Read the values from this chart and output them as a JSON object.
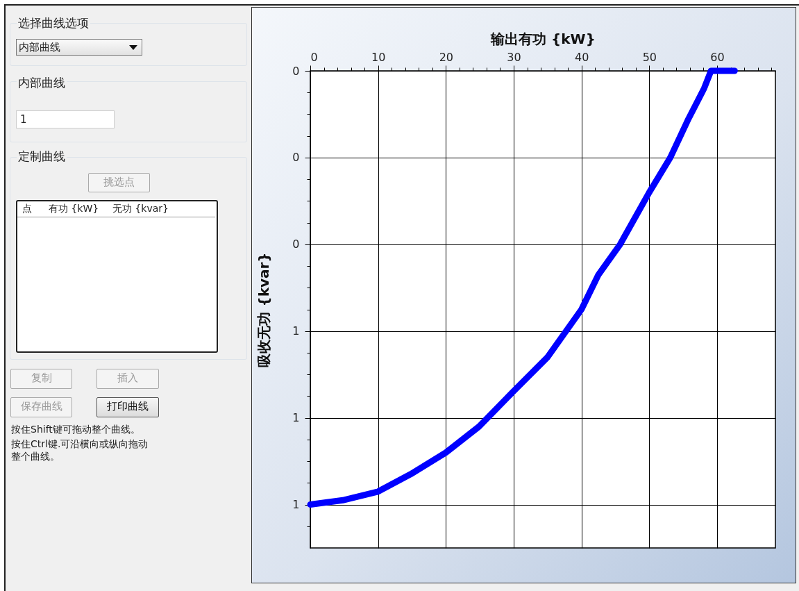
{
  "chart_data": {
    "type": "line",
    "xlabel": "输出有功 {kW}",
    "ylabel": "吸收无功 {kvar}",
    "series": [
      {
        "color": "#0000ff",
        "x": [
          0,
          4.8,
          10,
          14.8,
          20,
          24.9,
          29.9,
          35,
          40,
          42.5,
          45.7,
          50,
          53.1,
          55.8,
          58.1,
          59.1,
          62.6
        ],
        "values": [
          1.0,
          0.99,
          0.97,
          0.93,
          0.88,
          0.82,
          0.74,
          0.66,
          0.55,
          0.47,
          0.4,
          0.28,
          0.2,
          0.11,
          0.04,
          0,
          0
        ]
      }
    ],
    "xlim": [
      0,
      68.6
    ],
    "xticks": [
      0,
      {
        "value": 2,
        "label": null
      },
      {
        "value": 4,
        "label": null
      },
      {
        "value": 6,
        "label": null
      },
      {
        "value": 8,
        "label": null
      },
      10,
      {
        "value": 12,
        "label": null
      },
      {
        "value": 14,
        "label": null
      },
      {
        "value": 16,
        "label": null
      },
      {
        "value": 18,
        "label": null
      },
      20,
      {
        "value": 22,
        "label": null
      },
      {
        "value": 24,
        "label": null
      },
      {
        "value": 26,
        "label": null
      },
      {
        "value": 28,
        "label": null
      },
      30,
      {
        "value": 32,
        "label": null
      },
      {
        "value": 34,
        "label": null
      },
      {
        "value": 36,
        "label": null
      },
      {
        "value": 38,
        "label": null
      },
      40,
      {
        "value": 42,
        "label": null
      },
      {
        "value": 44,
        "label": null
      },
      {
        "value": 46,
        "label": null
      },
      {
        "value": 48,
        "label": null
      },
      50,
      {
        "value": 52,
        "label": null
      },
      {
        "value": 54,
        "label": null
      },
      {
        "value": 56,
        "label": null
      },
      {
        "value": 58,
        "label": null
      },
      60,
      {
        "value": 62,
        "label": null
      },
      {
        "value": 64,
        "label": null
      },
      {
        "value": 66,
        "label": null
      },
      {
        "value": 68,
        "label": null
      }
    ],
    "ylim": [
      1.1,
      0
    ],
    "yticks": [
      0,
      {
        "value": 0.05,
        "label": null
      },
      {
        "value": 0.1,
        "label": null
      },
      {
        "value": 0.15,
        "label": null
      },
      {
        "value": 0.2,
        "label": "0"
      },
      {
        "value": 0.25,
        "label": null
      },
      {
        "value": 0.3,
        "label": null
      },
      {
        "value": 0.35,
        "label": null
      },
      {
        "value": 0.4,
        "label": "0"
      },
      {
        "value": 0.45,
        "label": null
      },
      {
        "value": 0.5,
        "label": null
      },
      {
        "value": 0.55,
        "label": null
      },
      {
        "value": 0.6,
        "label": "1"
      },
      {
        "value": 0.65,
        "label": null
      },
      {
        "value": 0.7,
        "label": null
      },
      {
        "value": 0.75,
        "label": null
      },
      {
        "value": 0.8,
        "label": "1"
      },
      {
        "value": 0.85,
        "label": null
      },
      {
        "value": 0.9,
        "label": null
      },
      {
        "value": 0.95,
        "label": null
      },
      1,
      {
        "value": 1.05,
        "label": null
      }
    ],
    "grid": true,
    "line_style": "solid",
    "annotations": [
      "选择曲线选项",
      "内部曲线",
      "内部曲线",
      "1",
      "定制曲线",
      "挑选点",
      "点",
      "有功 {kW}",
      "无功 {kvar}",
      "复制",
      "插入",
      "保存曲线",
      "打印曲线",
      "按住Shift键可拖动整个曲线。",
      "按住Ctrl键.可沿横向或纵向拖动整个曲线。"
    ]
  }
}
